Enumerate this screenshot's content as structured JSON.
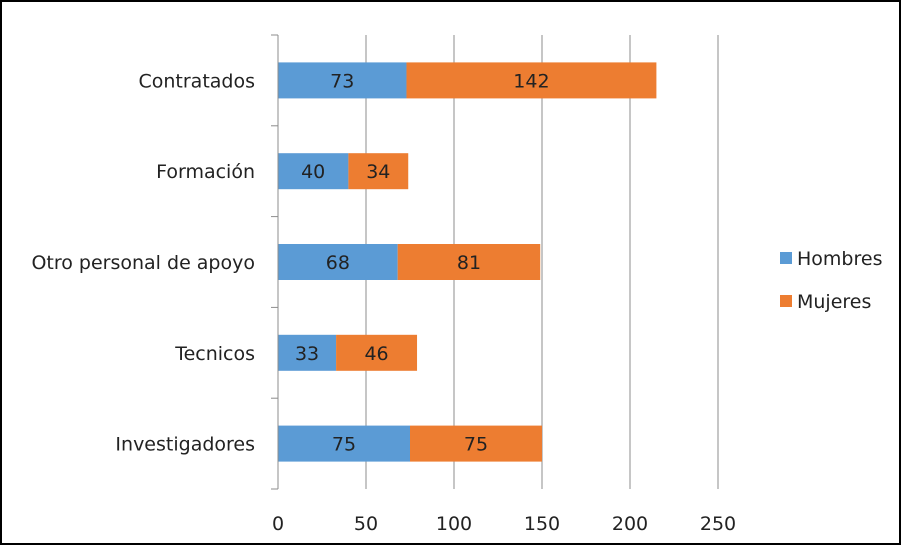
{
  "chart_data": {
    "type": "bar",
    "orientation": "horizontal",
    "stacked": true,
    "categories": [
      "Contratados",
      "Formación",
      "Otro personal de apoyo",
      "Tecnicos",
      "Investigadores"
    ],
    "series": [
      {
        "name": "Hombres",
        "values": [
          73,
          40,
          68,
          33,
          75
        ],
        "color": "#5b9bd5"
      },
      {
        "name": "Mujeres",
        "values": [
          142,
          34,
          81,
          46,
          75
        ],
        "color": "#ed7d31"
      }
    ],
    "xlim": [
      0,
      250
    ],
    "xticks": [
      0,
      50,
      100,
      150,
      200,
      250
    ],
    "grid": true,
    "legend_position": "right",
    "data_labels": true
  }
}
